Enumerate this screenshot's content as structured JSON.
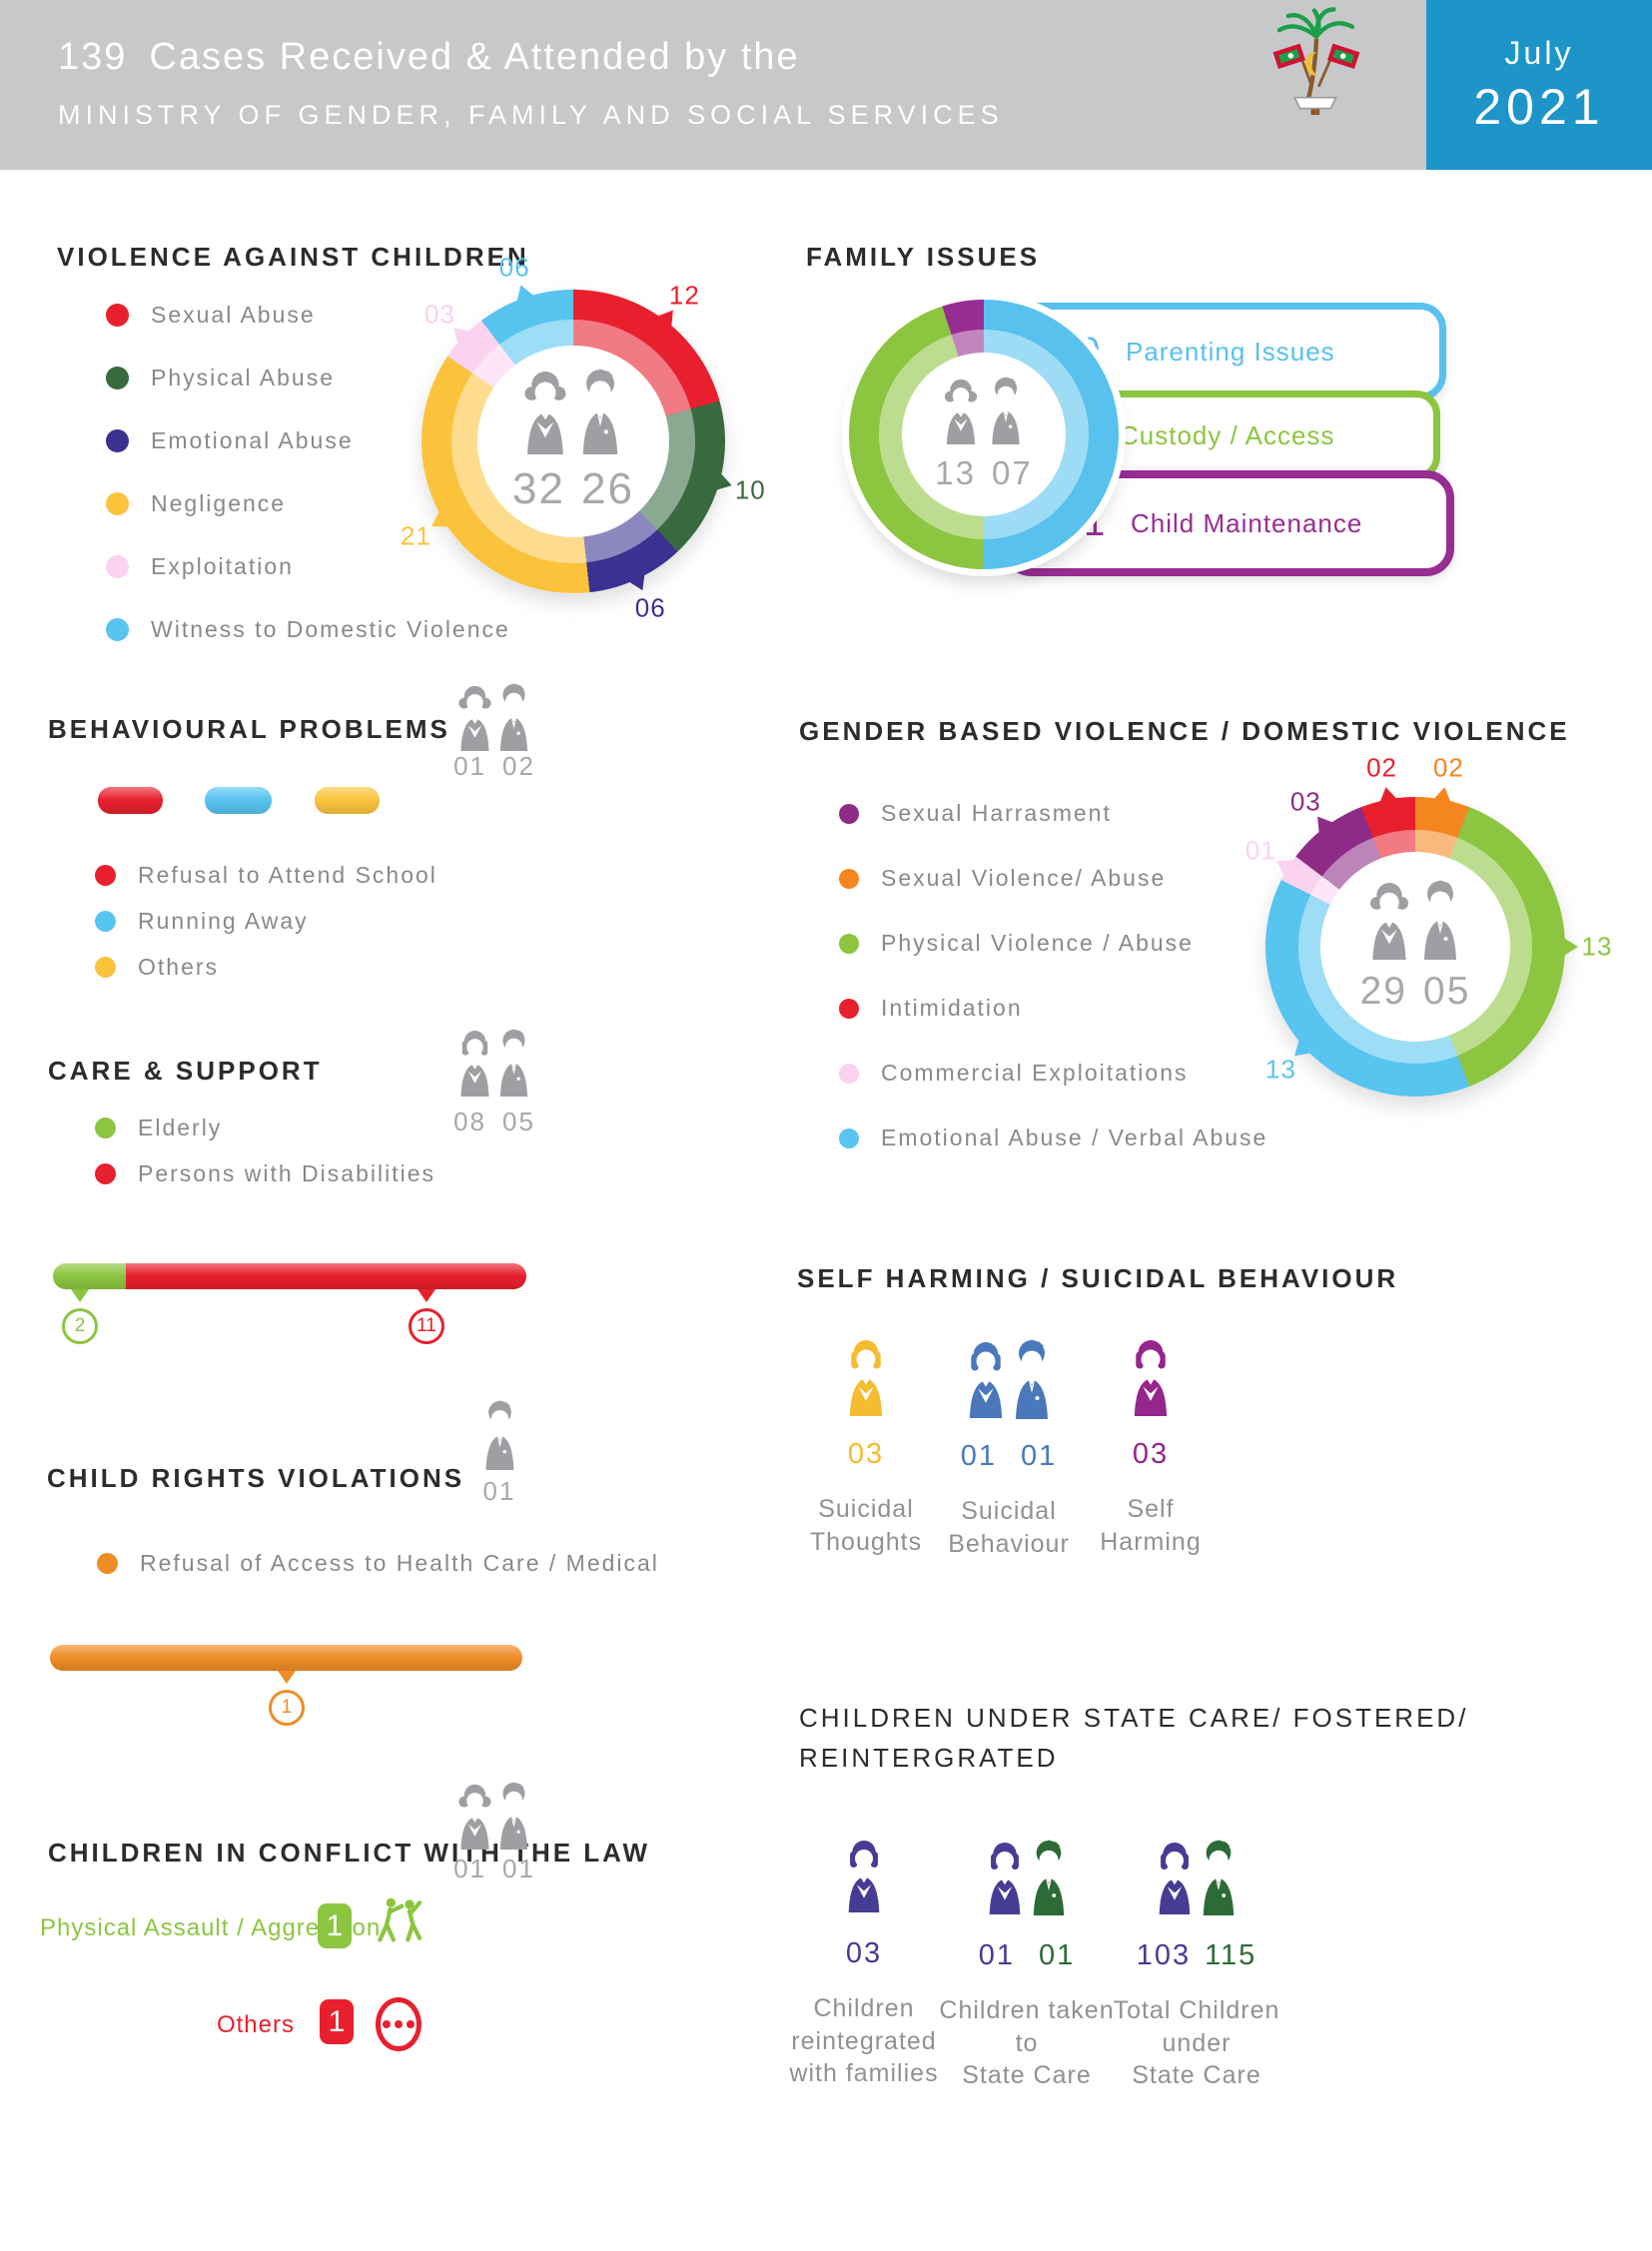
{
  "header": {
    "case_count": "139",
    "title": "Cases Received & Attended by the",
    "subtitle": "MINISTRY OF GENDER, FAMILY AND SOCIAL SERVICES",
    "month": "July",
    "year": "2021",
    "bg_color": "#c7c8ca",
    "accent_color": "#1d95c9"
  },
  "chart_data": [
    {
      "id": "violence_against_children",
      "type": "pie",
      "title": "VIOLENCE AGAINST CHILDREN",
      "legend_position": "left",
      "center": {
        "girls": "32",
        "boys": "26"
      },
      "slices": [
        {
          "label": "Sexual Abuse",
          "value": 12,
          "display": "12",
          "color": "#e8202d",
          "light": "#f27a82"
        },
        {
          "label": "Physical Abuse",
          "value": 10,
          "display": "10",
          "color": "#38693f",
          "light": "#8ba890"
        },
        {
          "label": "Emotional Abuse",
          "value": 6,
          "display": "06",
          "color": "#3a3191",
          "light": "#8d87bf"
        },
        {
          "label": "Negligence",
          "value": 21,
          "display": "21",
          "color": "#fbc33c",
          "light": "#fddc8e"
        },
        {
          "label": "Exploitation",
          "value": 3,
          "display": "03",
          "color": "#fbd2f0",
          "light": "#fde6f7"
        },
        {
          "label": "Witness to Domestic Violence",
          "value": 6,
          "display": "06",
          "color": "#58c4f0",
          "light": "#9eddf6"
        }
      ]
    },
    {
      "id": "family_issues",
      "type": "pie",
      "title": "FAMILY ISSUES",
      "center": {
        "girls": "13",
        "boys": "07"
      },
      "slices": [
        {
          "label": "Parenting Issues",
          "value": 10,
          "display": "10",
          "color": "#58c1ee",
          "light": "#9edcf5"
        },
        {
          "label": "Custody / Access",
          "value": 9,
          "display": "09",
          "color": "#8cc540",
          "light": "#bcdd90"
        },
        {
          "label": "Child Maintenance",
          "value": 1,
          "display": "01",
          "color": "#982d92",
          "light": "#c385c0"
        }
      ]
    },
    {
      "id": "gender_based_violence",
      "type": "pie",
      "title": "GENDER BASED VIOLENCE / DOMESTIC VIOLENCE",
      "center": {
        "women": "29",
        "men": "05"
      },
      "slices": [
        {
          "label": "Sexual Violence/ Abuse",
          "value": 2,
          "display": "02",
          "color": "#f5861f",
          "light": "#f9b97d"
        },
        {
          "label": "Physical Violence / Abuse",
          "value": 13,
          "display": "13",
          "color": "#8cc540",
          "light": "#bcdd90"
        },
        {
          "label": "Emotional Abuse / Verbal Abuse",
          "value": 13,
          "display": "13",
          "color": "#58c4f0",
          "light": "#9eddf6"
        },
        {
          "label": "Commercial Exploitations",
          "value": 1,
          "display": "01",
          "color": "#fbd2f0",
          "light": "#fde6f7"
        },
        {
          "label": "Sexual Harrasment",
          "value": 3,
          "display": "03",
          "color": "#8e2b86",
          "light": "#bd84b9"
        },
        {
          "label": "Intimidation",
          "value": 2,
          "display": "02",
          "color": "#e8202d",
          "light": "#f27a82"
        }
      ]
    },
    {
      "id": "care_support_bar",
      "type": "bar",
      "title": "CARE & SUPPORT",
      "segments": [
        {
          "label": "Elderly",
          "value": 2,
          "display": "2",
          "color": "#8cc540"
        },
        {
          "label": "Persons with Disabilities",
          "value": 11,
          "display": "11",
          "color": "#e8202d"
        }
      ]
    },
    {
      "id": "child_rights_bar",
      "type": "bar",
      "title": "CHILD RIGHTS VIOLATIONS",
      "segments": [
        {
          "label": "Refusal of Access to Health Care / Medical",
          "value": 1,
          "display": "1",
          "color": "#ee8c27"
        }
      ]
    }
  ],
  "sections": {
    "violence_against_children": {
      "title": "VIOLENCE AGAINST CHILDREN"
    },
    "family_issues": {
      "title": "FAMILY ISSUES"
    },
    "behavioural_problems": {
      "title": "BEHAVIOURAL PROBLEMS",
      "counts": {
        "girls": "01",
        "boys": "02"
      },
      "categories": [
        {
          "label": "Refusal to Attend School",
          "color": "#e8202d"
        },
        {
          "label": "Running Away",
          "color": "#58c4f0"
        },
        {
          "label": "Others",
          "color": "#fbc33c"
        }
      ]
    },
    "care_support": {
      "title": "CARE & SUPPORT",
      "counts": {
        "women": "08",
        "men": "05"
      }
    },
    "gender_based_violence": {
      "title": "GENDER BASED VIOLENCE / DOMESTIC VIOLENCE"
    },
    "self_harming": {
      "title": "SELF HARMING / SUICIDAL BEHAVIOUR",
      "items": [
        {
          "label_line1": "Suicidal",
          "label_line2": "Thoughts",
          "value1": "03",
          "color": "#f5bc31"
        },
        {
          "label_line1": "Suicidal",
          "label_line2": "Behaviour",
          "value1": "01",
          "value2": "01",
          "color": "#4a78bb"
        },
        {
          "label_line1": "Self",
          "label_line2": "Harming",
          "value1": "03",
          "color": "#94268c"
        }
      ]
    },
    "child_rights": {
      "title": "CHILD RIGHTS VIOLATIONS",
      "count": "01"
    },
    "state_care": {
      "title_line1": "CHILDREN UNDER STATE CARE/ FOSTERED/",
      "title_line2": "REINTERGRATED",
      "items": [
        {
          "label_line1": "Children reintegrated",
          "label_line2": "with families",
          "value1": "03",
          "color1": "#463c94"
        },
        {
          "label_line1": "Children taken to",
          "label_line2": "State Care",
          "value1": "01",
          "color1": "#463c94",
          "value2": "01",
          "color2": "#2c6b37"
        },
        {
          "label_line1": "Total Children under",
          "label_line2": "State Care",
          "value1": "103",
          "color1": "#463c94",
          "value2": "115",
          "color2": "#2c6b37"
        }
      ]
    },
    "conflict_law": {
      "title": "CHILDREN IN CONFLICT WITH THE LAW",
      "counts": {
        "girls": "01",
        "boys": "01"
      },
      "rows": [
        {
          "label": "Physical Assault / Aggression",
          "value": "1",
          "color": "#8cc540"
        },
        {
          "label": "Others",
          "value": "1",
          "color": "#e8202d"
        }
      ]
    }
  }
}
